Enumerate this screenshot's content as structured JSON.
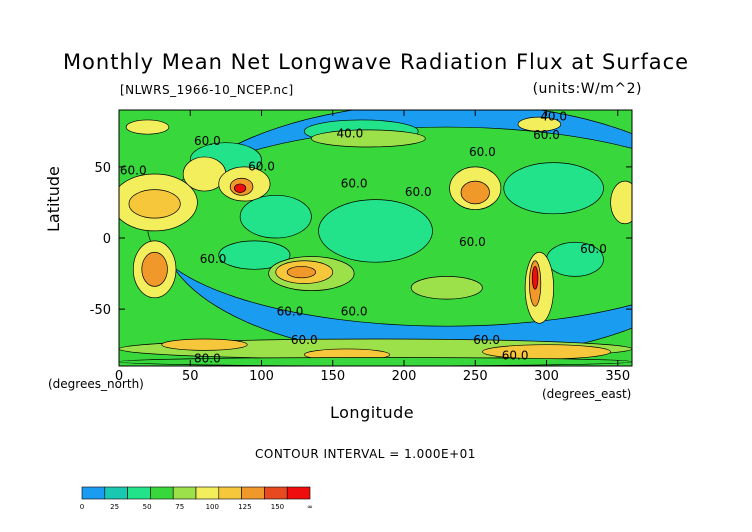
{
  "chart_data": {
    "type": "heatmap",
    "title": "Monthly Mean Net Longwave Radiation Flux at Surface",
    "source_file": "[NLWRS_1966-10_NCEP.nc]",
    "units": "(units:W/m^2)",
    "xlabel": "Longitude",
    "ylabel": "Latitude",
    "x_unit_label": "(degrees_east)",
    "y_unit_label": "(degrees_north)",
    "xlim": [
      0,
      360
    ],
    "ylim": [
      -90,
      90
    ],
    "x_ticks": [
      0,
      50,
      100,
      150,
      200,
      250,
      300,
      350
    ],
    "y_ticks": [
      -50,
      0,
      50
    ],
    "contour_interval": "CONTOUR INTERVAL = 1.000E+01",
    "contour_labels": [
      {
        "text": "60.0",
        "lon": 62,
        "lat": 68
      },
      {
        "text": "60.0",
        "lon": 10,
        "lat": 47
      },
      {
        "text": "60.0",
        "lon": 255,
        "lat": 60
      },
      {
        "text": "60.0",
        "lon": 210,
        "lat": 32
      },
      {
        "text": "60.0",
        "lon": 165,
        "lat": 38
      },
      {
        "text": "60.0",
        "lon": 248,
        "lat": -3
      },
      {
        "text": "60.0",
        "lon": 66,
        "lat": -15
      },
      {
        "text": "60.0",
        "lon": 333,
        "lat": -8
      },
      {
        "text": "60.0",
        "lon": 120,
        "lat": -52
      },
      {
        "text": "60.0",
        "lon": 165,
        "lat": -52
      },
      {
        "text": "60.0",
        "lon": 130,
        "lat": -72
      },
      {
        "text": "60.0",
        "lon": 258,
        "lat": -72
      },
      {
        "text": "60.0",
        "lon": 278,
        "lat": -83
      },
      {
        "text": "60.0",
        "lon": 300,
        "lat": 72
      },
      {
        "text": "60.0",
        "lon": 100,
        "lat": 50
      },
      {
        "text": "40.0",
        "lon": 162,
        "lat": 73
      },
      {
        "text": "40.0",
        "lon": 305,
        "lat": 85
      },
      {
        "text": "80.0",
        "lon": 62,
        "lat": -85
      }
    ],
    "colorbar": {
      "colors": [
        "#1a9cf0",
        "#19c8b0",
        "#22e28a",
        "#38d83c",
        "#9ce04a",
        "#f2ee5c",
        "#f6c73a",
        "#f0982a",
        "#e84a20",
        "#f00d0d"
      ],
      "tick_labels": [
        "0",
        "25",
        "50",
        "75",
        "100",
        "125",
        "150",
        "∞"
      ]
    },
    "fill_regions": [
      {
        "level": 0,
        "cx": 230,
        "cy": 5,
        "rx": 200,
        "ry": 90
      },
      {
        "level": 3,
        "cx": 230,
        "cy": 8,
        "rx": 210,
        "ry": 70
      },
      {
        "level": 2,
        "cx": 180,
        "cy": 5,
        "rx": 40,
        "ry": 22
      },
      {
        "level": 2,
        "cx": 110,
        "cy": 15,
        "rx": 25,
        "ry": 15
      },
      {
        "level": 2,
        "cx": 305,
        "cy": 35,
        "rx": 35,
        "ry": 18
      },
      {
        "level": 2,
        "cx": 170,
        "cy": 75,
        "rx": 40,
        "ry": 8
      },
      {
        "level": 2,
        "cx": 75,
        "cy": 55,
        "rx": 25,
        "ry": 12
      },
      {
        "level": 2,
        "cx": 320,
        "cy": -15,
        "rx": 20,
        "ry": 12
      },
      {
        "level": 2,
        "cx": 95,
        "cy": -12,
        "rx": 25,
        "ry": 10
      },
      {
        "level": 5,
        "cx": 25,
        "cy": 25,
        "rx": 30,
        "ry": 20
      },
      {
        "level": 6,
        "cx": 25,
        "cy": 24,
        "rx": 18,
        "ry": 10
      },
      {
        "level": 5,
        "cx": 60,
        "cy": 45,
        "rx": 15,
        "ry": 12
      },
      {
        "level": 5,
        "cx": 88,
        "cy": 38,
        "rx": 18,
        "ry": 12
      },
      {
        "level": 7,
        "cx": 86,
        "cy": 36,
        "rx": 8,
        "ry": 6
      },
      {
        "level": 9,
        "cx": 85,
        "cy": 35,
        "rx": 4,
        "ry": 3
      },
      {
        "level": 5,
        "cx": 250,
        "cy": 35,
        "rx": 18,
        "ry": 15
      },
      {
        "level": 7,
        "cx": 250,
        "cy": 32,
        "rx": 10,
        "ry": 8
      },
      {
        "level": 5,
        "cx": 355,
        "cy": 25,
        "rx": 10,
        "ry": 15
      },
      {
        "level": 4,
        "cx": 175,
        "cy": 70,
        "rx": 40,
        "ry": 6
      },
      {
        "level": 5,
        "cx": 25,
        "cy": -22,
        "rx": 15,
        "ry": 20
      },
      {
        "level": 7,
        "cx": 25,
        "cy": -22,
        "rx": 9,
        "ry": 12
      },
      {
        "level": 4,
        "cx": 135,
        "cy": -25,
        "rx": 30,
        "ry": 12
      },
      {
        "level": 6,
        "cx": 130,
        "cy": -24,
        "rx": 20,
        "ry": 8
      },
      {
        "level": 7,
        "cx": 128,
        "cy": -24,
        "rx": 10,
        "ry": 4
      },
      {
        "level": 4,
        "cx": 230,
        "cy": -35,
        "rx": 25,
        "ry": 8
      },
      {
        "level": 5,
        "cx": 295,
        "cy": -35,
        "rx": 10,
        "ry": 25
      },
      {
        "level": 7,
        "cx": 292,
        "cy": -32,
        "rx": 4,
        "ry": 16
      },
      {
        "level": 9,
        "cx": 292,
        "cy": -28,
        "rx": 2,
        "ry": 8
      },
      {
        "level": 4,
        "cx": 180,
        "cy": -78,
        "rx": 180,
        "ry": 7
      },
      {
        "level": 6,
        "cx": 60,
        "cy": -75,
        "rx": 30,
        "ry": 4
      },
      {
        "level": 6,
        "cx": 160,
        "cy": -82,
        "rx": 30,
        "ry": 4
      },
      {
        "level": 6,
        "cx": 300,
        "cy": -80,
        "rx": 45,
        "ry": 5
      },
      {
        "level": 3,
        "cx": 180,
        "cy": -87,
        "rx": 180,
        "ry": 3
      },
      {
        "level": 5,
        "cx": 20,
        "cy": 78,
        "rx": 15,
        "ry": 5
      },
      {
        "level": 5,
        "cx": 295,
        "cy": 80,
        "rx": 15,
        "ry": 5
      }
    ]
  }
}
